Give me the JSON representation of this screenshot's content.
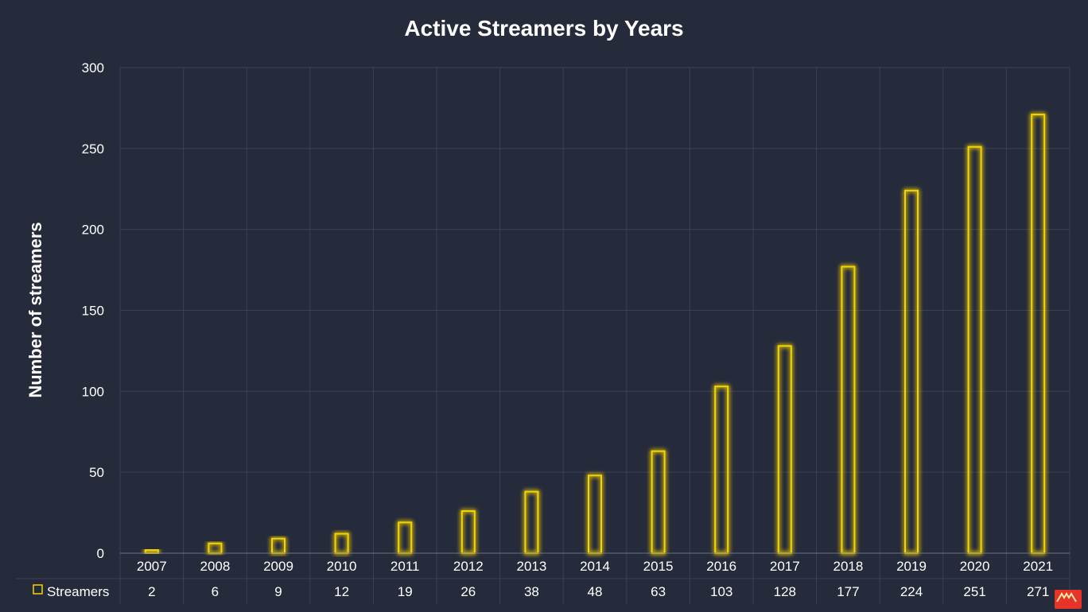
{
  "chart_data": {
    "type": "bar",
    "title": "Active Streamers by Years",
    "xlabel": "",
    "ylabel": "Number of streamers",
    "categories": [
      "2007",
      "2008",
      "2009",
      "2010",
      "2011",
      "2012",
      "2013",
      "2014",
      "2015",
      "2016",
      "2017",
      "2018",
      "2019",
      "2020",
      "2021"
    ],
    "series": [
      {
        "name": "Streamers",
        "values": [
          2,
          6,
          9,
          12,
          19,
          26,
          38,
          48,
          63,
          103,
          128,
          177,
          224,
          251,
          271
        ]
      }
    ],
    "ylim": [
      0,
      300
    ],
    "yticks": [
      0,
      50,
      100,
      150,
      200,
      250,
      300
    ],
    "grid": true,
    "legend": "data-table-bottom-left",
    "data_table": true,
    "colors": {
      "background": "#262b3b",
      "bar_outline": "#f5d400",
      "grid": "#3a4256",
      "text": "#ffffff"
    }
  },
  "logo": {
    "icon": "brand-logo-icon",
    "color": "#e8332a"
  }
}
